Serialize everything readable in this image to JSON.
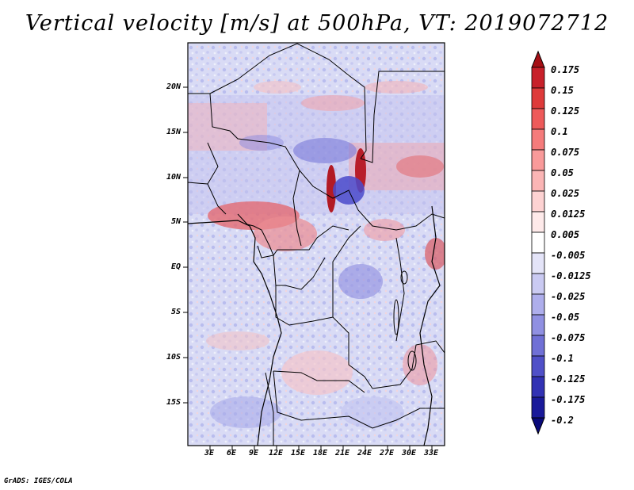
{
  "title": "Vertical velocity [m/s] at 500hPa, VT: 2019072712",
  "credit": "GrADS: IGES/COLA",
  "lat_labels": [
    "20N",
    "15N",
    "10N",
    "5N",
    "EQ",
    "5S",
    "10S",
    "15S"
  ],
  "lon_labels": [
    "3E",
    "6E",
    "9E",
    "12E",
    "15E",
    "18E",
    "21E",
    "24E",
    "27E",
    "30E",
    "33E"
  ],
  "colorbar": {
    "labels": [
      "0.175",
      "0.15",
      "0.125",
      "0.1",
      "0.075",
      "0.05",
      "0.025",
      "0.0125",
      "0.005",
      "-0.005",
      "-0.0125",
      "-0.025",
      "-0.05",
      "-0.075",
      "-0.1",
      "-0.125",
      "-0.175",
      "-0.2"
    ],
    "colors": [
      "#a50f15",
      "#c8202a",
      "#de3a3a",
      "#ee5a5a",
      "#f57b7b",
      "#f99a9a",
      "#fbb5b5",
      "#fdd2d2",
      "#feeaea",
      "#ffffff",
      "#e4e4f8",
      "#cacaf2",
      "#aeaeec",
      "#9090e2",
      "#7070d6",
      "#5050c8",
      "#3232b4",
      "#1a1a9a",
      "#0a0a7a"
    ]
  }
}
